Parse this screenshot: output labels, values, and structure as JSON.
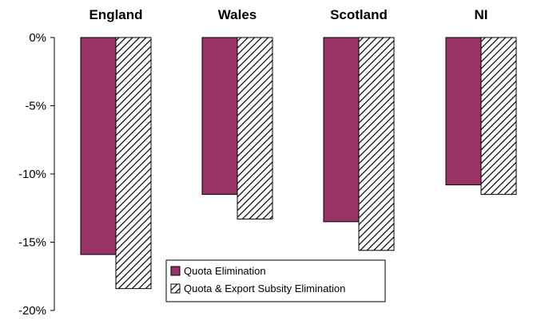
{
  "chart_data": {
    "type": "bar",
    "categories": [
      "England",
      "Wales",
      "Scotland",
      "NI"
    ],
    "series": [
      {
        "name": "Quota Elimination",
        "values": [
          -15.9,
          -11.5,
          -13.5,
          -10.8
        ],
        "color": "#993366",
        "pattern": "solid"
      },
      {
        "name": "Quota & Export Subsity Elimination",
        "values": [
          -18.4,
          -13.3,
          -15.6,
          -11.5
        ],
        "color": "#000000",
        "pattern": "diagonal-hatch"
      }
    ],
    "yticks": [
      "0%",
      "-5%",
      "-10%",
      "-15%",
      "-20%"
    ],
    "ylim": [
      -20,
      0
    ],
    "category_labels_position": "top",
    "legend_position": "bottom-center",
    "grid": false
  }
}
